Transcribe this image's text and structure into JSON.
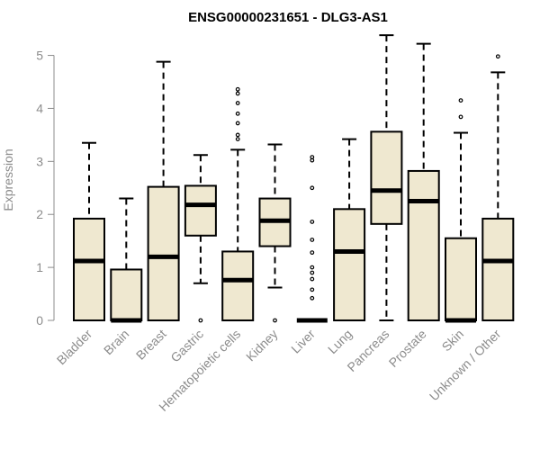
{
  "chart_data": {
    "type": "boxplot",
    "title": "ENSG00000231651 - DLG3-AS1",
    "xlabel": "",
    "ylabel": "Expression",
    "ylim": [
      0,
      5.4
    ],
    "yticks": [
      0,
      1,
      2,
      3,
      4,
      5
    ],
    "grid": false,
    "categories": [
      "Bladder",
      "Brain",
      "Breast",
      "Gastric",
      "Hematopoietic cells",
      "Kidney",
      "Liver",
      "Lung",
      "Pancreas",
      "Prostate",
      "Skin",
      "Unknown / Other"
    ],
    "boxes": [
      {
        "min": 0,
        "q1": 0,
        "median": 1.12,
        "q3": 1.92,
        "max": 3.35,
        "outliers": []
      },
      {
        "min": 0,
        "q1": 0,
        "median": 0,
        "q3": 0.96,
        "max": 2.3,
        "outliers": []
      },
      {
        "min": 0,
        "q1": 0,
        "median": 1.2,
        "q3": 2.52,
        "max": 4.88,
        "outliers": []
      },
      {
        "min": 0.7,
        "q1": 1.6,
        "median": 2.18,
        "q3": 2.54,
        "max": 3.12,
        "outliers": [
          0
        ]
      },
      {
        "min": 0,
        "q1": 0,
        "median": 0.76,
        "q3": 1.3,
        "max": 3.22,
        "outliers": [
          3.42,
          3.5,
          3.72,
          3.9,
          4.1,
          4.28,
          4.36
        ]
      },
      {
        "min": 0.62,
        "q1": 1.4,
        "median": 1.88,
        "q3": 2.3,
        "max": 3.32,
        "outliers": [
          0
        ]
      },
      {
        "min": 0,
        "q1": 0,
        "median": 0,
        "q3": 0,
        "max": 0,
        "outliers": [
          0.42,
          0.58,
          0.78,
          0.9,
          1.0,
          1.28,
          1.52,
          1.86,
          2.5,
          3.02,
          3.08
        ]
      },
      {
        "min": 0,
        "q1": 0,
        "median": 1.3,
        "q3": 2.1,
        "max": 3.42,
        "outliers": []
      },
      {
        "min": 0,
        "q1": 1.82,
        "median": 2.45,
        "q3": 3.56,
        "max": 5.38,
        "outliers": []
      },
      {
        "min": 0,
        "q1": 0,
        "median": 2.25,
        "q3": 2.82,
        "max": 5.22,
        "outliers": []
      },
      {
        "min": 0,
        "q1": 0,
        "median": 0,
        "q3": 1.55,
        "max": 3.54,
        "outliers": [
          3.84,
          4.15
        ]
      },
      {
        "min": 0,
        "q1": 0,
        "median": 1.12,
        "q3": 1.92,
        "max": 4.68,
        "outliers": [
          4.98
        ]
      }
    ]
  }
}
